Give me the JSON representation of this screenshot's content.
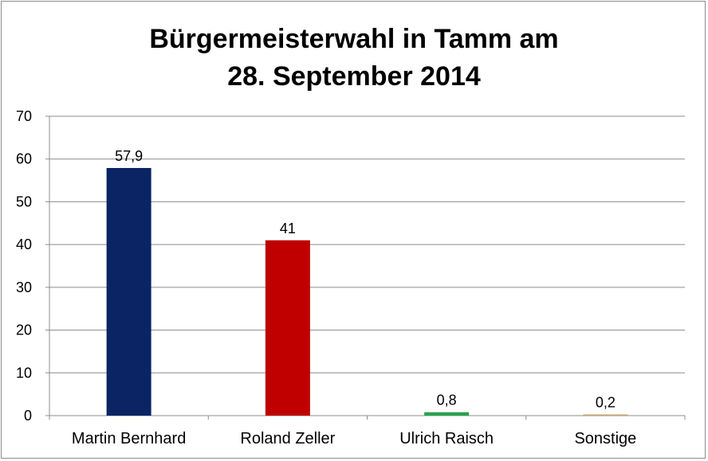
{
  "chart_data": {
    "type": "bar",
    "title_lines": [
      "Bürgermeisterwahl in Tamm am",
      "28. September 2014"
    ],
    "categories": [
      "Martin Bernhard",
      "Roland Zeller",
      "Ulrich Raisch",
      "Sonstige"
    ],
    "values": [
      57.9,
      41,
      0.8,
      0.2
    ],
    "data_labels": [
      "57,9",
      "41",
      "0,8",
      "0,2"
    ],
    "colors": [
      "#0b2463",
      "#c00000",
      "#2aa150",
      "#c9a66b"
    ],
    "ylim": [
      0,
      70
    ],
    "yticks": [
      0,
      10,
      20,
      30,
      40,
      50,
      60,
      70
    ],
    "grid": true,
    "legend": "none",
    "xlabel": "",
    "ylabel": ""
  }
}
